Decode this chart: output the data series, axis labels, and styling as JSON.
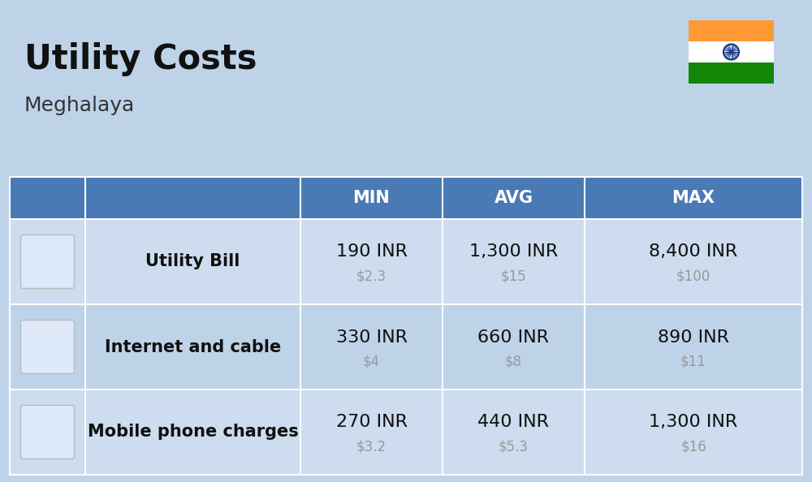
{
  "title": "Utility Costs",
  "subtitle": "Meghalaya",
  "background_color": "#bed3e8",
  "header_color": "#4a7ab5",
  "header_text_color": "#ffffff",
  "row_bg_odd": "#cddcee",
  "row_bg_even": "#bed3e8",
  "col_headers": [
    "MIN",
    "AVG",
    "MAX"
  ],
  "rows": [
    {
      "label": "Utility Bill",
      "min_inr": "190 INR",
      "min_usd": "$2.3",
      "avg_inr": "1,300 INR",
      "avg_usd": "$15",
      "max_inr": "8,400 INR",
      "max_usd": "$100"
    },
    {
      "label": "Internet and cable",
      "min_inr": "330 INR",
      "min_usd": "$4",
      "avg_inr": "660 INR",
      "avg_usd": "$8",
      "max_inr": "890 INR",
      "max_usd": "$11"
    },
    {
      "label": "Mobile phone charges",
      "min_inr": "270 INR",
      "min_usd": "$3.2",
      "avg_inr": "440 INR",
      "avg_usd": "$5.3",
      "max_inr": "1,300 INR",
      "max_usd": "$16"
    }
  ],
  "inr_fontsize": 16,
  "usd_fontsize": 12,
  "label_fontsize": 15,
  "header_fontsize": 15,
  "title_fontsize": 30,
  "subtitle_fontsize": 18,
  "usd_color": "#999999",
  "label_color": "#111111",
  "inr_color": "#111111",
  "india_flag_saffron": "#FF9933",
  "india_flag_white": "#FFFFFF",
  "india_flag_green": "#138808",
  "ashoka_chakra_color": "#1a3a8c"
}
